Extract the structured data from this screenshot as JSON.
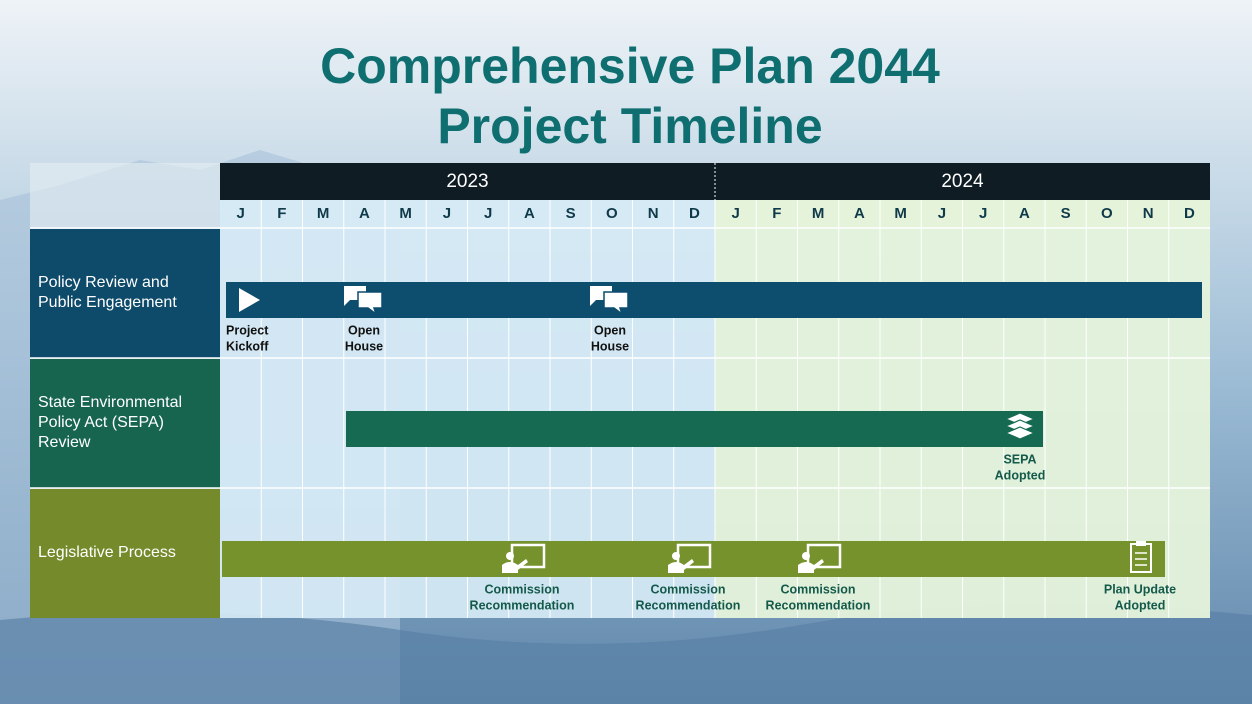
{
  "title": [
    "Comprehensive Plan 2044",
    "Project Timeline"
  ],
  "years": [
    "2023",
    "2024"
  ],
  "months": [
    "J",
    "F",
    "M",
    "A",
    "M",
    "J",
    "J",
    "A",
    "S",
    "O",
    "N",
    "D",
    "J",
    "F",
    "M",
    "A",
    "M",
    "J",
    "J",
    "A",
    "S",
    "O",
    "N",
    "D"
  ],
  "rows": [
    {
      "label": [
        "Policy Review and",
        "Public Engagement"
      ],
      "milestones": [
        {
          "label": [
            "Project",
            "Kickoff"
          ]
        },
        {
          "label": [
            "Open",
            "House"
          ]
        },
        {
          "label": [
            "Open",
            "House"
          ]
        }
      ]
    },
    {
      "label": [
        "State Environmental",
        "Policy Act (SEPA)",
        "Review"
      ],
      "milestones": [
        {
          "label": [
            "SEPA",
            "Adopted"
          ]
        }
      ]
    },
    {
      "label": [
        "Legislative Process"
      ],
      "milestones": [
        {
          "label": [
            "Commission",
            "Recommendation"
          ]
        },
        {
          "label": [
            "Commission",
            "Recommendation"
          ]
        },
        {
          "label": [
            "Commission",
            "Recommendation"
          ]
        },
        {
          "label": [
            "Plan Update",
            "Adopted"
          ]
        }
      ]
    }
  ]
}
